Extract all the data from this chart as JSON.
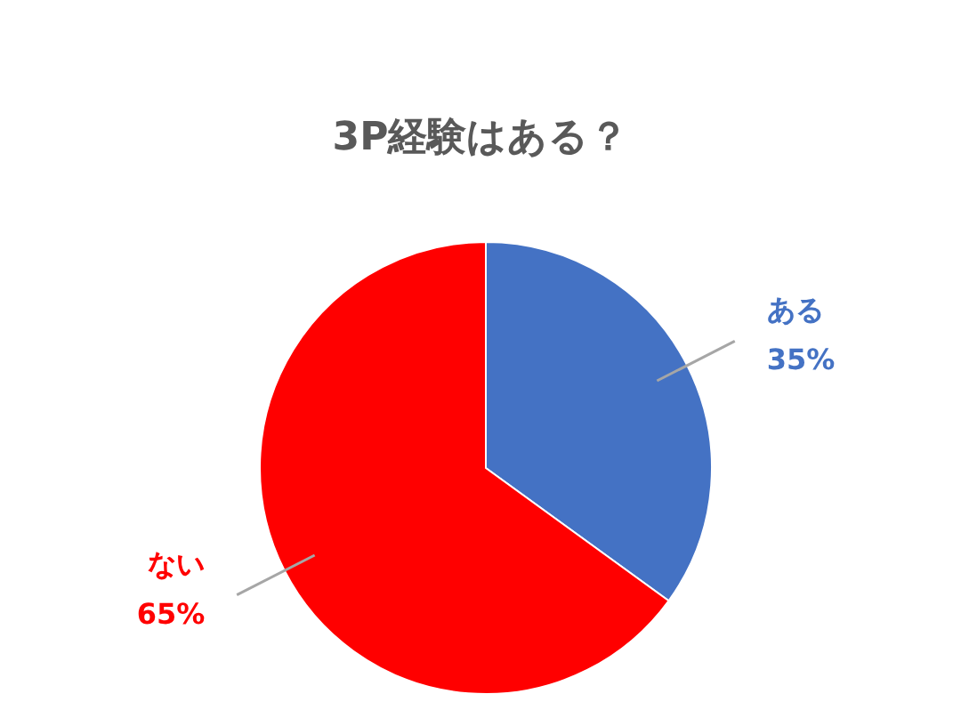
{
  "chart_data": {
    "type": "pie",
    "title": "3P経験はある？",
    "categories": [
      "ある",
      "ない"
    ],
    "values": [
      35,
      65
    ],
    "colors": [
      "#4472c4",
      "#ff0000"
    ],
    "value_labels": [
      "35%",
      "65%"
    ],
    "legend": false
  }
}
